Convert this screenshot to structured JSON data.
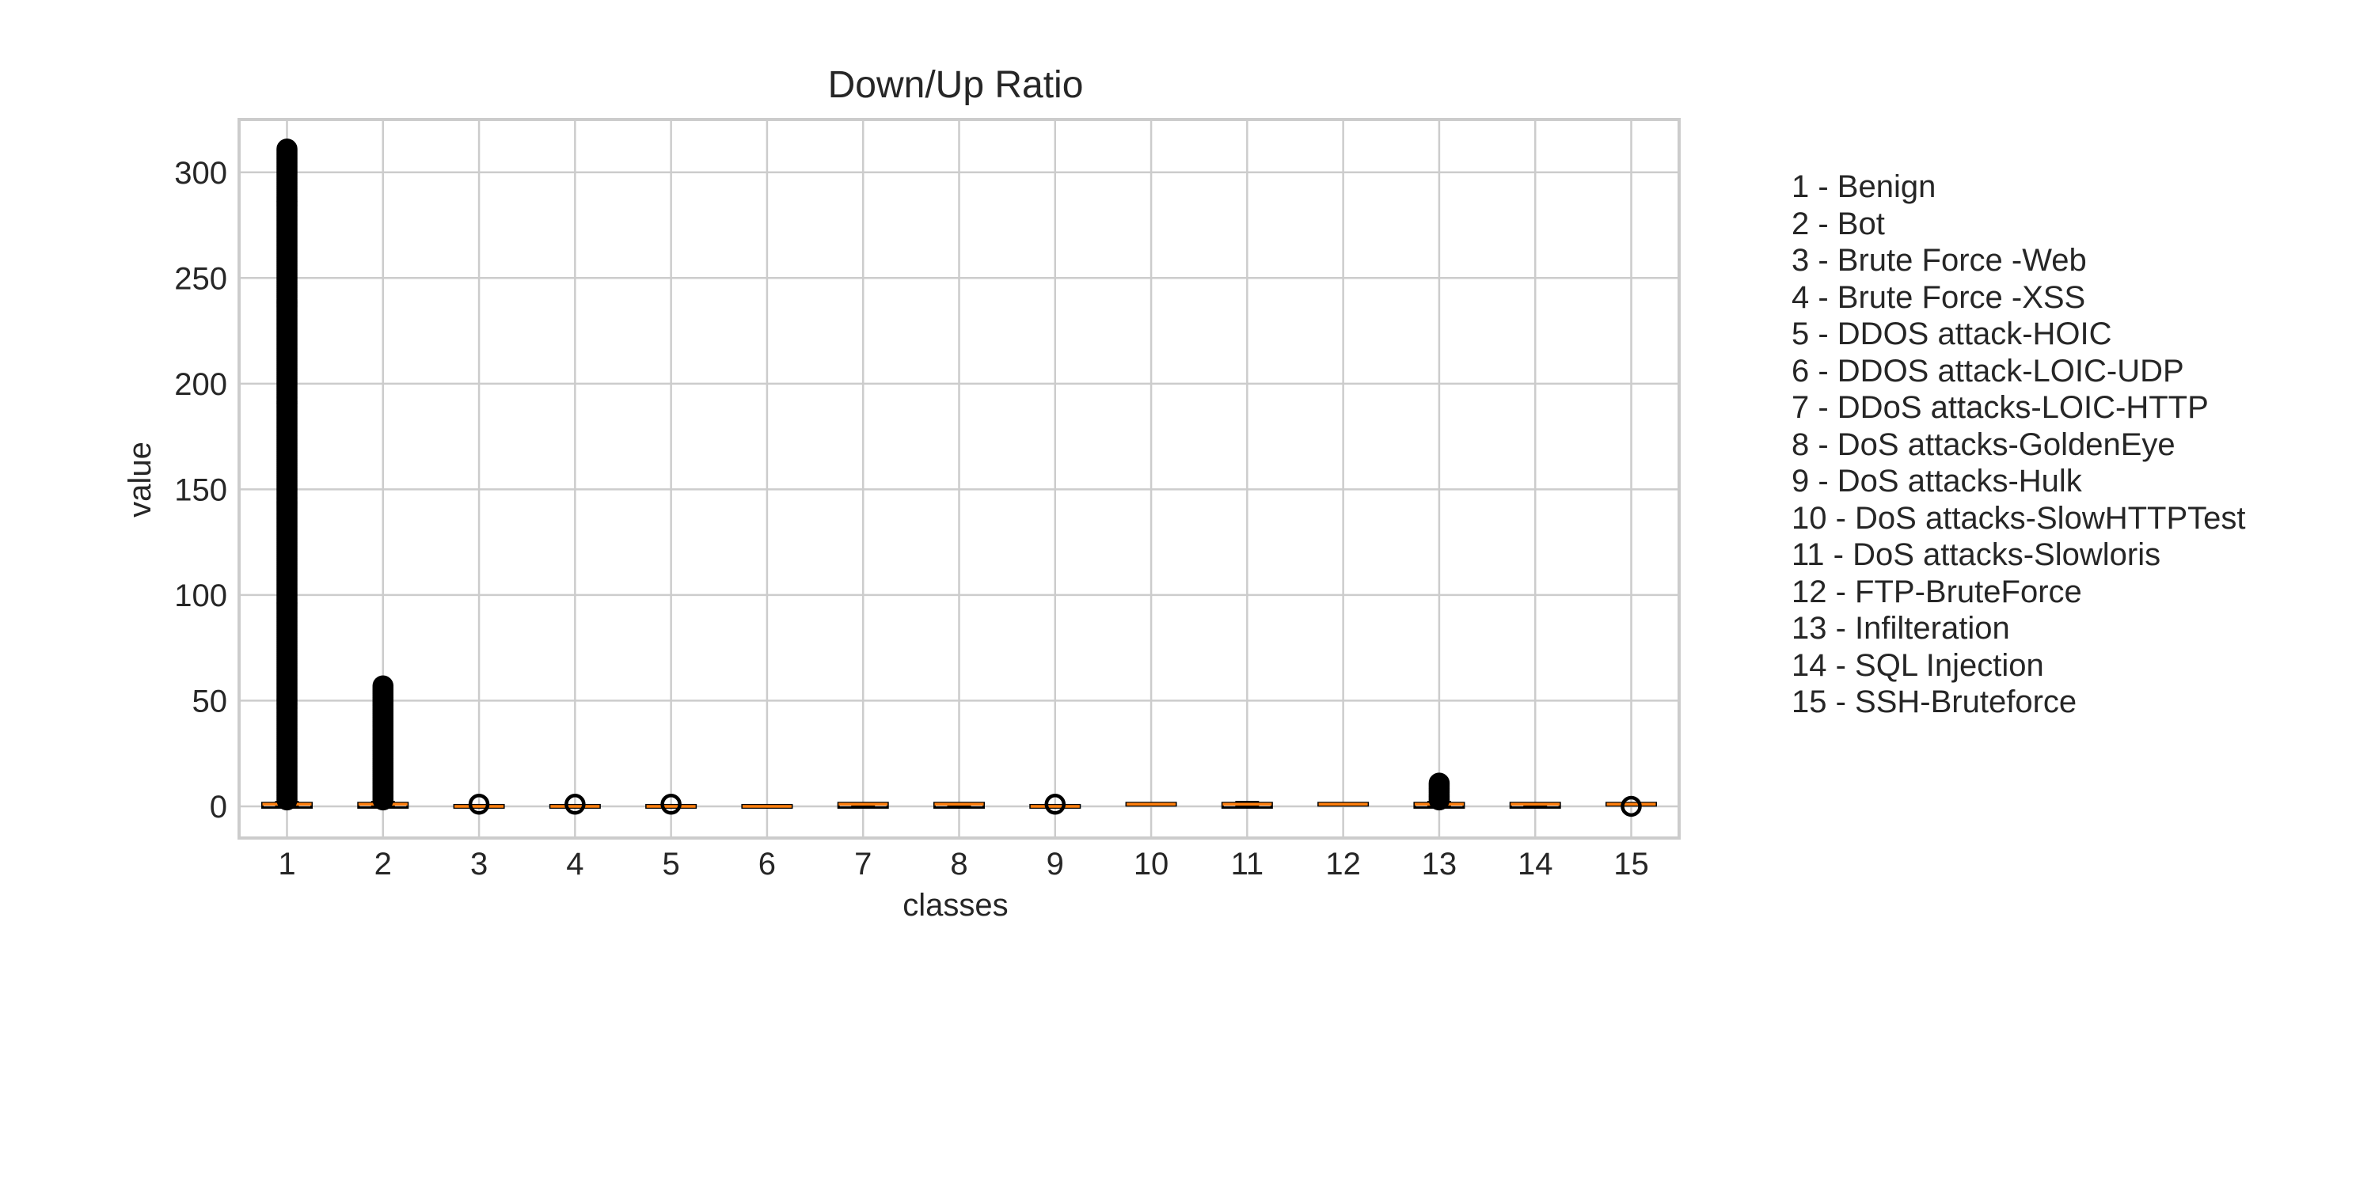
{
  "chart_data": {
    "type": "box",
    "title": "Down/Up Ratio",
    "xlabel": "classes",
    "ylabel": "value",
    "ylim": [
      -15,
      325
    ],
    "yticks": [
      0,
      50,
      100,
      150,
      200,
      250,
      300
    ],
    "categories": [
      "1",
      "2",
      "3",
      "4",
      "5",
      "6",
      "7",
      "8",
      "9",
      "10",
      "11",
      "12",
      "13",
      "14",
      "15"
    ],
    "grid": true,
    "box_color": "#000000",
    "median_color": "#ff7f0e",
    "boxes": [
      {
        "class": "1",
        "whisker_low": 0,
        "q1": 0,
        "median": 1,
        "q3": 1,
        "whisker_high": 2,
        "outliers_max": 311,
        "outliers_min": 3
      },
      {
        "class": "2",
        "whisker_low": 0,
        "q1": 0,
        "median": 1,
        "q3": 1,
        "whisker_high": 2,
        "outliers_max": 57,
        "outliers_min": 3
      },
      {
        "class": "3",
        "whisker_low": 0,
        "q1": 0,
        "median": 0,
        "q3": 0,
        "whisker_high": 0,
        "outliers": [
          1
        ]
      },
      {
        "class": "4",
        "whisker_low": 0,
        "q1": 0,
        "median": 0,
        "q3": 0,
        "whisker_high": 0,
        "outliers": [
          1
        ]
      },
      {
        "class": "5",
        "whisker_low": 0,
        "q1": 0,
        "median": 0,
        "q3": 0,
        "whisker_high": 0,
        "outliers": [
          1
        ]
      },
      {
        "class": "6",
        "whisker_low": 0,
        "q1": 0,
        "median": 0,
        "q3": 0,
        "whisker_high": 0,
        "outliers": []
      },
      {
        "class": "7",
        "whisker_low": 0,
        "q1": 0,
        "median": 1,
        "q3": 1,
        "whisker_high": 1,
        "outliers": []
      },
      {
        "class": "8",
        "whisker_low": 0,
        "q1": 0,
        "median": 1,
        "q3": 1,
        "whisker_high": 1,
        "outliers": []
      },
      {
        "class": "9",
        "whisker_low": 0,
        "q1": 0,
        "median": 0,
        "q3": 0,
        "whisker_high": 0,
        "outliers": [
          1
        ]
      },
      {
        "class": "10",
        "whisker_low": 1,
        "q1": 1,
        "median": 1,
        "q3": 1,
        "whisker_high": 1,
        "outliers": []
      },
      {
        "class": "11",
        "whisker_low": 0,
        "q1": 0,
        "median": 1,
        "q3": 1,
        "whisker_high": 2,
        "outliers": []
      },
      {
        "class": "12",
        "whisker_low": 1,
        "q1": 1,
        "median": 1,
        "q3": 1,
        "whisker_high": 1,
        "outliers": []
      },
      {
        "class": "13",
        "whisker_low": 0,
        "q1": 0,
        "median": 1,
        "q3": 1,
        "whisker_high": 2,
        "outliers_max": 11,
        "outliers_min": 3
      },
      {
        "class": "14",
        "whisker_low": 0,
        "q1": 0,
        "median": 1,
        "q3": 1,
        "whisker_high": 1,
        "outliers": []
      },
      {
        "class": "15",
        "whisker_low": 1,
        "q1": 1,
        "median": 1,
        "q3": 1,
        "whisker_high": 1,
        "outliers": [
          0
        ]
      }
    ]
  },
  "legend": [
    "1 - Benign",
    "2 - Bot",
    "3 - Brute Force -Web",
    "4 - Brute Force -XSS",
    "5 - DDOS attack-HOIC",
    "6 - DDOS attack-LOIC-UDP",
    "7 - DDoS attacks-LOIC-HTTP",
    "8 - DoS attacks-GoldenEye",
    "9 - DoS attacks-Hulk",
    "10 - DoS attacks-SlowHTTPTest",
    "11 - DoS attacks-Slowloris",
    "12 - FTP-BruteForce",
    "13 - Infilteration",
    "14 - SQL Injection",
    "15 - SSH-Bruteforce"
  ]
}
